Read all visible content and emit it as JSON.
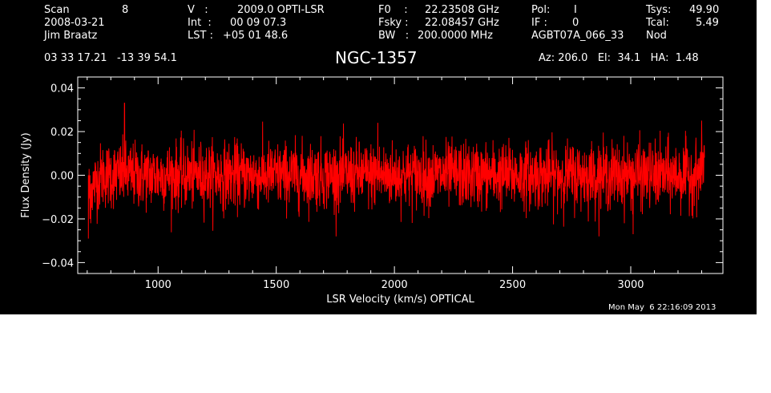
{
  "header": {
    "col1": [
      "Scan",
      "2008-03-21",
      "Jim Braatz"
    ],
    "scan_number": "8",
    "col2_labels": [
      "V   :",
      "Int  :",
      "LST :"
    ],
    "col2_values": [
      "2009.0 OPTI-LSR",
      "00 09 07.3",
      "+05 01 48.6"
    ],
    "col3_labels": [
      "F0    :",
      "Fsky :",
      "BW   :"
    ],
    "col3_values": [
      "22.23508 GHz",
      "22.08457 GHz",
      "200.0000 MHz"
    ],
    "col4_labels": [
      "Pol:",
      "IF :"
    ],
    "col4_values": [
      "I",
      "0"
    ],
    "receiver_id": "AGBT07A_066_33",
    "col5_labels": [
      "Tsys:",
      "Tcal:",
      "Nod"
    ],
    "col5_values": [
      "49.90",
      "5.49"
    ],
    "coordinates": "03 33 17.21   -13 39 54.1",
    "az_el_ha": "Az: 206.0   El:  34.1   HA:  1.48"
  },
  "timestamp": "Mon May  6 22:16:09 2013",
  "colors": {
    "background": "#000000",
    "axes": "#ffffff",
    "series": "#ff0000"
  },
  "chart_data": {
    "type": "line",
    "title": "NGC-1357",
    "xlabel": "LSR Velocity (km/s) OPTICAL",
    "ylabel": "Flux Density (Jy)",
    "xlim": [
      660,
      3390
    ],
    "ylim": [
      -0.045,
      0.045
    ],
    "xticks": [
      1000,
      1500,
      2000,
      2500,
      3000
    ],
    "yticks": [
      -0.04,
      -0.02,
      0.0,
      0.02,
      0.04
    ],
    "xtick_labels": [
      "1000",
      "1500",
      "2000",
      "2500",
      "3000"
    ],
    "ytick_labels": [
      "−0.04",
      "−0.02",
      "0.00",
      "0.02",
      "0.04"
    ],
    "grid": false,
    "series": [
      {
        "x_start": 705,
        "x_end": 3312,
        "points": 2600,
        "noise_rms_jy": 0.0075,
        "spikes": [
          {
            "x": 858,
            "y": 0.033
          },
          {
            "x": 705,
            "y": -0.029
          },
          {
            "x": 3010,
            "y": -0.027
          },
          {
            "x": 3300,
            "y": 0.025
          },
          {
            "x": 712,
            "y": -0.02
          },
          {
            "x": 1930,
            "y": 0.024
          }
        ]
      }
    ]
  }
}
